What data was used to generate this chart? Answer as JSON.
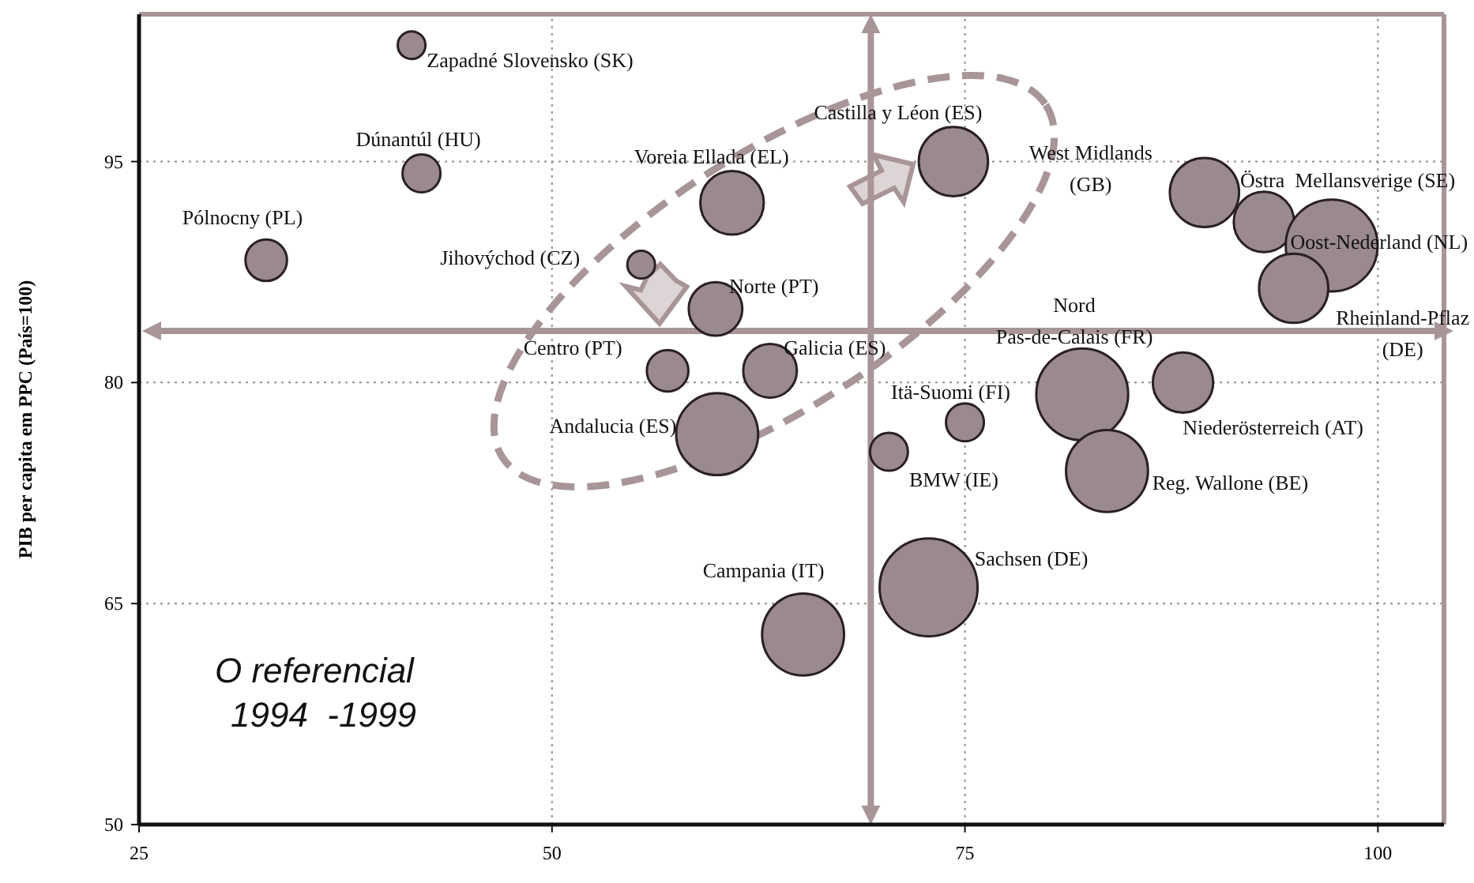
{
  "chart_data": {
    "type": "bubble",
    "ylabel": "PIB per capita em PPC (País=100)",
    "xlim": [
      25,
      104
    ],
    "ylim": [
      50,
      105
    ],
    "xticks": [
      25,
      50,
      75,
      100
    ],
    "yticks": [
      50,
      65,
      80,
      95
    ],
    "grid": true,
    "legend": false,
    "marker": "circle",
    "ref_lines": [
      {
        "axis": "x",
        "value": 69.3,
        "color": "#a89598"
      },
      {
        "axis": "y",
        "value": 83.5,
        "color": "#a89598"
      }
    ],
    "series": [
      {
        "color": "#9a8a8e",
        "x": [
          41.5,
          42.1,
          32.7,
          60.9,
          55.4,
          59.9,
          74.3,
          89.5,
          93.1,
          97.2,
          94.9,
          57.0,
          63.2,
          60.0,
          82.1,
          88.2,
          75.0,
          70.4,
          83.6,
          72.8,
          65.2
        ],
        "values": [
          102.9,
          94.2,
          88.3,
          92.2,
          88.0,
          85.0,
          95.0,
          92.9,
          90.9,
          89.3,
          86.4,
          80.8,
          80.8,
          76.5,
          79.2,
          80.0,
          77.3,
          75.3,
          74.0,
          66.1,
          62.9
        ],
        "sizes": [
          0.08,
          0.15,
          0.18,
          0.42,
          0.08,
          0.3,
          0.5,
          0.5,
          0.38,
          0.88,
          0.5,
          0.18,
          0.3,
          0.7,
          0.88,
          0.38,
          0.15,
          0.15,
          0.7,
          1,
          0.7
        ]
      }
    ],
    "annotations": [
      {
        "text": "Zapadné Slovensko (SK)",
        "x": 41.5,
        "y": 102.9
      },
      {
        "text": "Dúnantúl (HU)",
        "x": 42.1,
        "y": 94.2
      },
      {
        "text": "Pólnocny (PL)",
        "x": 32.7,
        "y": 88.3
      },
      {
        "text": "Voreia Ellada (EL)",
        "x": 60.9,
        "y": 92.2
      },
      {
        "text": "Jihovýchod (CZ)",
        "x": 55.4,
        "y": 88.0
      },
      {
        "text": "Norte (PT)",
        "x": 59.9,
        "y": 85.0
      },
      {
        "text": "Castilla y Léon (ES)",
        "x": 74.3,
        "y": 95.0
      },
      {
        "text": "West Midlands\n(GB)",
        "x": 89.5,
        "y": 92.9
      },
      {
        "text": "Östra  Mellansverige (SE)",
        "x": 93.1,
        "y": 90.9
      },
      {
        "text": "Oost-Nederland (NL)",
        "x": 97.2,
        "y": 89.3
      },
      {
        "text": "Rheinland-Pflaz\n(DE)",
        "x": 94.9,
        "y": 86.4
      },
      {
        "text": "Nord\nPas-de-Calais (FR)",
        "x": 82.1,
        "y": 79.2
      },
      {
        "text": "Centro (PT)",
        "x": 57.0,
        "y": 80.8
      },
      {
        "text": "Galicia (ES)",
        "x": 63.2,
        "y": 80.8
      },
      {
        "text": "Andalucia (ES)",
        "x": 60.0,
        "y": 76.5
      },
      {
        "text": "Itä-Suomi (FI)",
        "x": 75.0,
        "y": 77.3
      },
      {
        "text": "BMW (IE)",
        "x": 70.4,
        "y": 75.3
      },
      {
        "text": "Niederösterreich (AT)",
        "x": 88.2,
        "y": 80.0
      },
      {
        "text": "Reg. Wallone (BE)",
        "x": 83.6,
        "y": 74.0
      },
      {
        "text": "Sachsen (DE)",
        "x": 72.8,
        "y": 66.1
      },
      {
        "text": "Campania (IT)",
        "x": 65.2,
        "y": 62.9
      },
      "O referencial\n1994  -1999"
    ]
  }
}
